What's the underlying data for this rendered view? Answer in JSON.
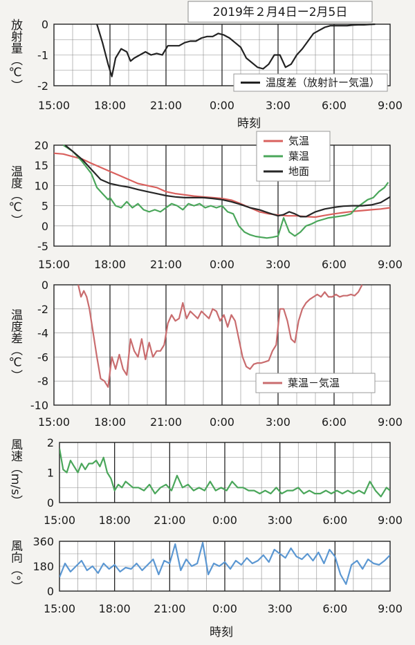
{
  "header": {
    "title": "2019年２月4日ー2月5日"
  },
  "x_ticks": [
    "15:00",
    "18:00",
    "21:00",
    "0:00",
    "3:00",
    "6:00",
    "9:00"
  ],
  "x_axis_label": "時刻",
  "chart_data": [
    {
      "type": "line",
      "id": "radiation",
      "ylabel": "放射量（℃）",
      "ylim": [
        -2,
        0
      ],
      "yticks": [
        "0",
        "-1",
        "-2"
      ],
      "grid": true,
      "legend": "bottom-right",
      "series": [
        {
          "name": "温度差（放射計ー気温）",
          "color": "#222222",
          "x": [
            17.3,
            17.6,
            17.9,
            18.1,
            18.3,
            18.6,
            18.9,
            19.1,
            19.3,
            19.6,
            19.9,
            20.2,
            20.5,
            20.8,
            21.1,
            21.4,
            21.7,
            22.0,
            22.3,
            22.6,
            22.9,
            23.2,
            23.5,
            23.8,
            24.1,
            24.4,
            24.7,
            25.0,
            25.3,
            25.6,
            25.9,
            26.2,
            26.5,
            26.8,
            27.1,
            27.4,
            27.7,
            28.0,
            28.3,
            28.6,
            28.9,
            29.2,
            29.5,
            29.8,
            30.1,
            30.4,
            30.7,
            31.0,
            31.3,
            31.6,
            31.9,
            32.2
          ],
          "y": [
            0,
            -0.6,
            -1.3,
            -1.7,
            -1.1,
            -0.8,
            -0.9,
            -1.2,
            -1.1,
            -1.0,
            -0.9,
            -1.0,
            -0.95,
            -1.0,
            -0.7,
            -0.7,
            -0.7,
            -0.6,
            -0.55,
            -0.55,
            -0.45,
            -0.4,
            -0.4,
            -0.3,
            -0.35,
            -0.45,
            -0.6,
            -0.75,
            -1.1,
            -1.25,
            -1.4,
            -1.45,
            -1.3,
            -1.0,
            -1.0,
            -1.4,
            -1.3,
            -1.0,
            -0.8,
            -0.55,
            -0.3,
            -0.2,
            -0.1,
            -0.05,
            -0.05,
            -0.05,
            -0.05,
            -0.03,
            -0.02,
            -0.02,
            -0.01,
            0
          ]
        }
      ]
    },
    {
      "type": "line",
      "id": "temperature",
      "ylabel": "温度（℃）",
      "ylim": [
        -5,
        20
      ],
      "yticks": [
        "20",
        "15",
        "10",
        "5",
        "0",
        "-5"
      ],
      "grid": true,
      "legend": "top-right",
      "series": [
        {
          "name": "気温",
          "color": "#d9605d",
          "x": [
            15.0,
            15.5,
            16.0,
            16.5,
            17.0,
            17.5,
            18.0,
            18.5,
            19.0,
            19.5,
            20.0,
            20.5,
            21.0,
            21.5,
            22.0,
            22.5,
            23.0,
            23.5,
            24.0,
            24.5,
            25.0,
            25.5,
            26.0,
            26.5,
            27.0,
            27.5,
            28.0,
            28.5,
            29.0,
            29.5,
            30.0,
            30.5,
            31.0,
            31.5,
            32.0,
            32.5,
            33.0
          ],
          "y": [
            18,
            17.8,
            17.2,
            16.6,
            15.5,
            14.5,
            13.5,
            12.5,
            11.5,
            10.5,
            10,
            9.5,
            8.5,
            8,
            7.7,
            7.4,
            7.2,
            7,
            6.8,
            6.4,
            5.5,
            4.5,
            3.5,
            3,
            2.7,
            2.5,
            2.5,
            2.3,
            2.2,
            2.6,
            3,
            3.3,
            3.6,
            3.8,
            4,
            4.2,
            4.5
          ]
        },
        {
          "name": "葉温",
          "color": "#4aa65a",
          "x": [
            15.5,
            16.0,
            16.5,
            17.0,
            17.3,
            17.6,
            17.9,
            18.0,
            18.3,
            18.6,
            18.9,
            19.2,
            19.5,
            19.8,
            20.1,
            20.4,
            20.7,
            21.0,
            21.3,
            21.6,
            21.9,
            22.2,
            22.5,
            22.8,
            23.1,
            23.4,
            23.7,
            24.0,
            24.3,
            24.6,
            24.9,
            25.2,
            25.5,
            25.8,
            26.1,
            26.4,
            26.7,
            27.0,
            27.3,
            27.6,
            27.9,
            28.2,
            28.5,
            28.8,
            29.1,
            29.4,
            29.7,
            30.0,
            30.3,
            30.6,
            30.9,
            31.2,
            31.5,
            31.8,
            32.1,
            32.4,
            32.7,
            32.9
          ],
          "y": [
            20,
            18.5,
            16,
            13,
            9.5,
            8,
            6.5,
            7,
            5,
            4.5,
            6,
            4.5,
            5.5,
            4,
            3.5,
            4,
            3.5,
            4.5,
            5.5,
            5,
            4,
            5.5,
            5,
            5.5,
            4.5,
            5,
            4.5,
            5,
            3.5,
            3,
            0,
            -1.5,
            -2.2,
            -2.6,
            -2.8,
            -3,
            -2.8,
            -2.5,
            2,
            -1.5,
            -2.5,
            -1.5,
            0,
            0.5,
            1.2,
            1.6,
            2,
            2.2,
            2.4,
            2.6,
            3,
            4.5,
            5.5,
            6.5,
            7,
            8.5,
            9.5,
            10.8
          ]
        },
        {
          "name": "地面",
          "color": "#262626",
          "x": [
            15.6,
            16.0,
            16.5,
            17.0,
            17.5,
            18.0,
            18.5,
            19.0,
            19.5,
            20.0,
            20.5,
            21.0,
            21.5,
            22.0,
            22.5,
            23.0,
            23.5,
            24.0,
            24.5,
            25.0,
            25.5,
            26.0,
            26.5,
            27.0,
            27.3,
            27.6,
            27.9,
            28.2,
            28.5,
            29.0,
            29.5,
            30.0,
            30.5,
            31.0,
            31.5,
            32.0,
            32.5,
            33.0
          ],
          "y": [
            20,
            18.5,
            16.5,
            14,
            11.5,
            10.5,
            10,
            9.6,
            9,
            8.5,
            8,
            7.5,
            7.2,
            7,
            7,
            7,
            6.8,
            6.5,
            6,
            5.3,
            4.5,
            4,
            3.2,
            2.5,
            2.8,
            3.5,
            3,
            2.3,
            2.3,
            3.5,
            4.2,
            4.6,
            4.9,
            5,
            5,
            5.2,
            5.8,
            7.2
          ]
        }
      ]
    },
    {
      "type": "line",
      "id": "temp_diff",
      "ylabel": "温度差（℃）",
      "ylim": [
        -10,
        0
      ],
      "yticks": [
        "0",
        "-2",
        "-4",
        "-6",
        "-8",
        "-10"
      ],
      "grid": true,
      "legend": "bottom-right",
      "series": [
        {
          "name": "葉温－気温",
          "color": "#c96c6e",
          "x": [
            16.3,
            16.45,
            16.6,
            16.75,
            16.9,
            17.1,
            17.3,
            17.5,
            17.7,
            17.9,
            18.1,
            18.3,
            18.5,
            18.7,
            18.9,
            19.1,
            19.3,
            19.5,
            19.7,
            19.9,
            20.1,
            20.3,
            20.5,
            20.7,
            20.9,
            21.1,
            21.3,
            21.5,
            21.7,
            21.9,
            22.1,
            22.3,
            22.5,
            22.7,
            22.9,
            23.1,
            23.3,
            23.5,
            23.7,
            23.9,
            24.1,
            24.3,
            24.5,
            24.7,
            24.9,
            25.1,
            25.3,
            25.5,
            25.7,
            25.9,
            26.1,
            26.3,
            26.5,
            26.7,
            26.9,
            27.1,
            27.3,
            27.5,
            27.7,
            27.9,
            28.1,
            28.3,
            28.5,
            28.7,
            28.9,
            29.1,
            29.3,
            29.5,
            29.7,
            29.9,
            30.1,
            30.3,
            30.5,
            30.7,
            30.9,
            31.1,
            31.3,
            31.5
          ],
          "y": [
            0,
            -1,
            -0.5,
            -1,
            -2,
            -4,
            -6,
            -7.8,
            -8,
            -8.5,
            -6,
            -7,
            -5.8,
            -7,
            -7.5,
            -4.5,
            -5.5,
            -6,
            -4.5,
            -6.2,
            -4.8,
            -6,
            -5.5,
            -5.5,
            -5,
            -3.2,
            -2.5,
            -3,
            -2.8,
            -1.5,
            -2.8,
            -2.2,
            -2.5,
            -2.8,
            -2.2,
            -2.5,
            -2.8,
            -2,
            -2.2,
            -3,
            -2.5,
            -3.5,
            -2.5,
            -3,
            -4.5,
            -6,
            -6.8,
            -7,
            -6.6,
            -6.5,
            -6.5,
            -6.4,
            -6.3,
            -5.5,
            -5,
            -2,
            -2,
            -3,
            -4.5,
            -4.8,
            -3,
            -2,
            -1.5,
            -1.2,
            -1,
            -0.8,
            -1,
            -0.6,
            -1,
            -1,
            -0.8,
            -1,
            -0.9,
            -0.9,
            -0.8,
            -0.9,
            -0.6,
            0
          ]
        }
      ]
    },
    {
      "type": "line",
      "id": "wind_speed",
      "ylabel": "風速（m/s）",
      "ylim": [
        0,
        2
      ],
      "yticks": [
        "2",
        "1",
        "0"
      ],
      "grid": true,
      "series": [
        {
          "name": "",
          "color": "#4aa65a",
          "x": [
            15.0,
            15.2,
            15.4,
            15.6,
            15.8,
            16.0,
            16.2,
            16.4,
            16.6,
            16.8,
            17.0,
            17.2,
            17.4,
            17.6,
            17.8,
            18.0,
            18.2,
            18.4,
            18.6,
            18.8,
            19.0,
            19.3,
            19.6,
            19.9,
            20.2,
            20.5,
            20.8,
            21.1,
            21.4,
            21.7,
            22.0,
            22.3,
            22.6,
            22.9,
            23.2,
            23.5,
            23.8,
            24.1,
            24.4,
            24.7,
            25.0,
            25.3,
            25.6,
            25.9,
            26.2,
            26.5,
            26.8,
            27.1,
            27.4,
            27.7,
            28.0,
            28.3,
            28.6,
            28.9,
            29.2,
            29.5,
            29.8,
            30.1,
            30.4,
            30.7,
            31.0,
            31.3,
            31.6,
            31.9,
            32.2,
            32.5,
            32.8,
            33.0
          ],
          "y": [
            1.8,
            1.1,
            1.0,
            1.4,
            1.2,
            1.0,
            1.3,
            1.1,
            1.3,
            1.3,
            1.4,
            1.2,
            1.5,
            1.0,
            0.8,
            0.4,
            0.6,
            0.5,
            0.7,
            0.6,
            0.5,
            0.5,
            0.4,
            0.6,
            0.3,
            0.5,
            0.6,
            0.4,
            0.9,
            0.5,
            0.6,
            0.4,
            0.5,
            0.4,
            0.7,
            0.4,
            0.5,
            0.4,
            0.7,
            0.5,
            0.5,
            0.4,
            0.4,
            0.3,
            0.4,
            0.3,
            0.5,
            0.3,
            0.4,
            0.4,
            0.5,
            0.3,
            0.4,
            0.3,
            0.3,
            0.4,
            0.3,
            0.4,
            0.3,
            0.4,
            0.3,
            0.4,
            0.3,
            0.7,
            0.4,
            0.2,
            0.5,
            0.4
          ]
        }
      ]
    },
    {
      "type": "line",
      "id": "wind_dir",
      "ylabel": "風向（°）",
      "ylim": [
        0,
        360
      ],
      "yticks": [
        "360",
        "180",
        "0"
      ],
      "grid": true,
      "series": [
        {
          "name": "",
          "color": "#5b97d2",
          "x": [
            15.0,
            15.3,
            15.6,
            15.9,
            16.2,
            16.5,
            16.8,
            17.1,
            17.4,
            17.7,
            18.0,
            18.3,
            18.6,
            18.9,
            19.2,
            19.5,
            19.8,
            20.1,
            20.4,
            20.7,
            21.0,
            21.3,
            21.6,
            21.9,
            22.2,
            22.5,
            22.8,
            23.1,
            23.4,
            23.7,
            24.0,
            24.3,
            24.6,
            24.9,
            25.2,
            25.5,
            25.8,
            26.1,
            26.4,
            26.7,
            27.0,
            27.3,
            27.6,
            27.9,
            28.2,
            28.5,
            28.8,
            29.1,
            29.4,
            29.7,
            30.0,
            30.3,
            30.6,
            30.9,
            31.2,
            31.5,
            31.8,
            32.1,
            32.4,
            32.7,
            33.0
          ],
          "y": [
            100,
            200,
            140,
            180,
            220,
            150,
            180,
            130,
            200,
            160,
            190,
            140,
            170,
            160,
            200,
            150,
            190,
            230,
            120,
            220,
            200,
            340,
            150,
            230,
            180,
            200,
            350,
            120,
            200,
            180,
            210,
            160,
            220,
            190,
            240,
            200,
            220,
            260,
            210,
            300,
            270,
            240,
            310,
            250,
            230,
            270,
            220,
            280,
            200,
            300,
            250,
            120,
            50,
            190,
            220,
            160,
            230,
            200,
            190,
            220,
            260
          ]
        }
      ]
    }
  ]
}
